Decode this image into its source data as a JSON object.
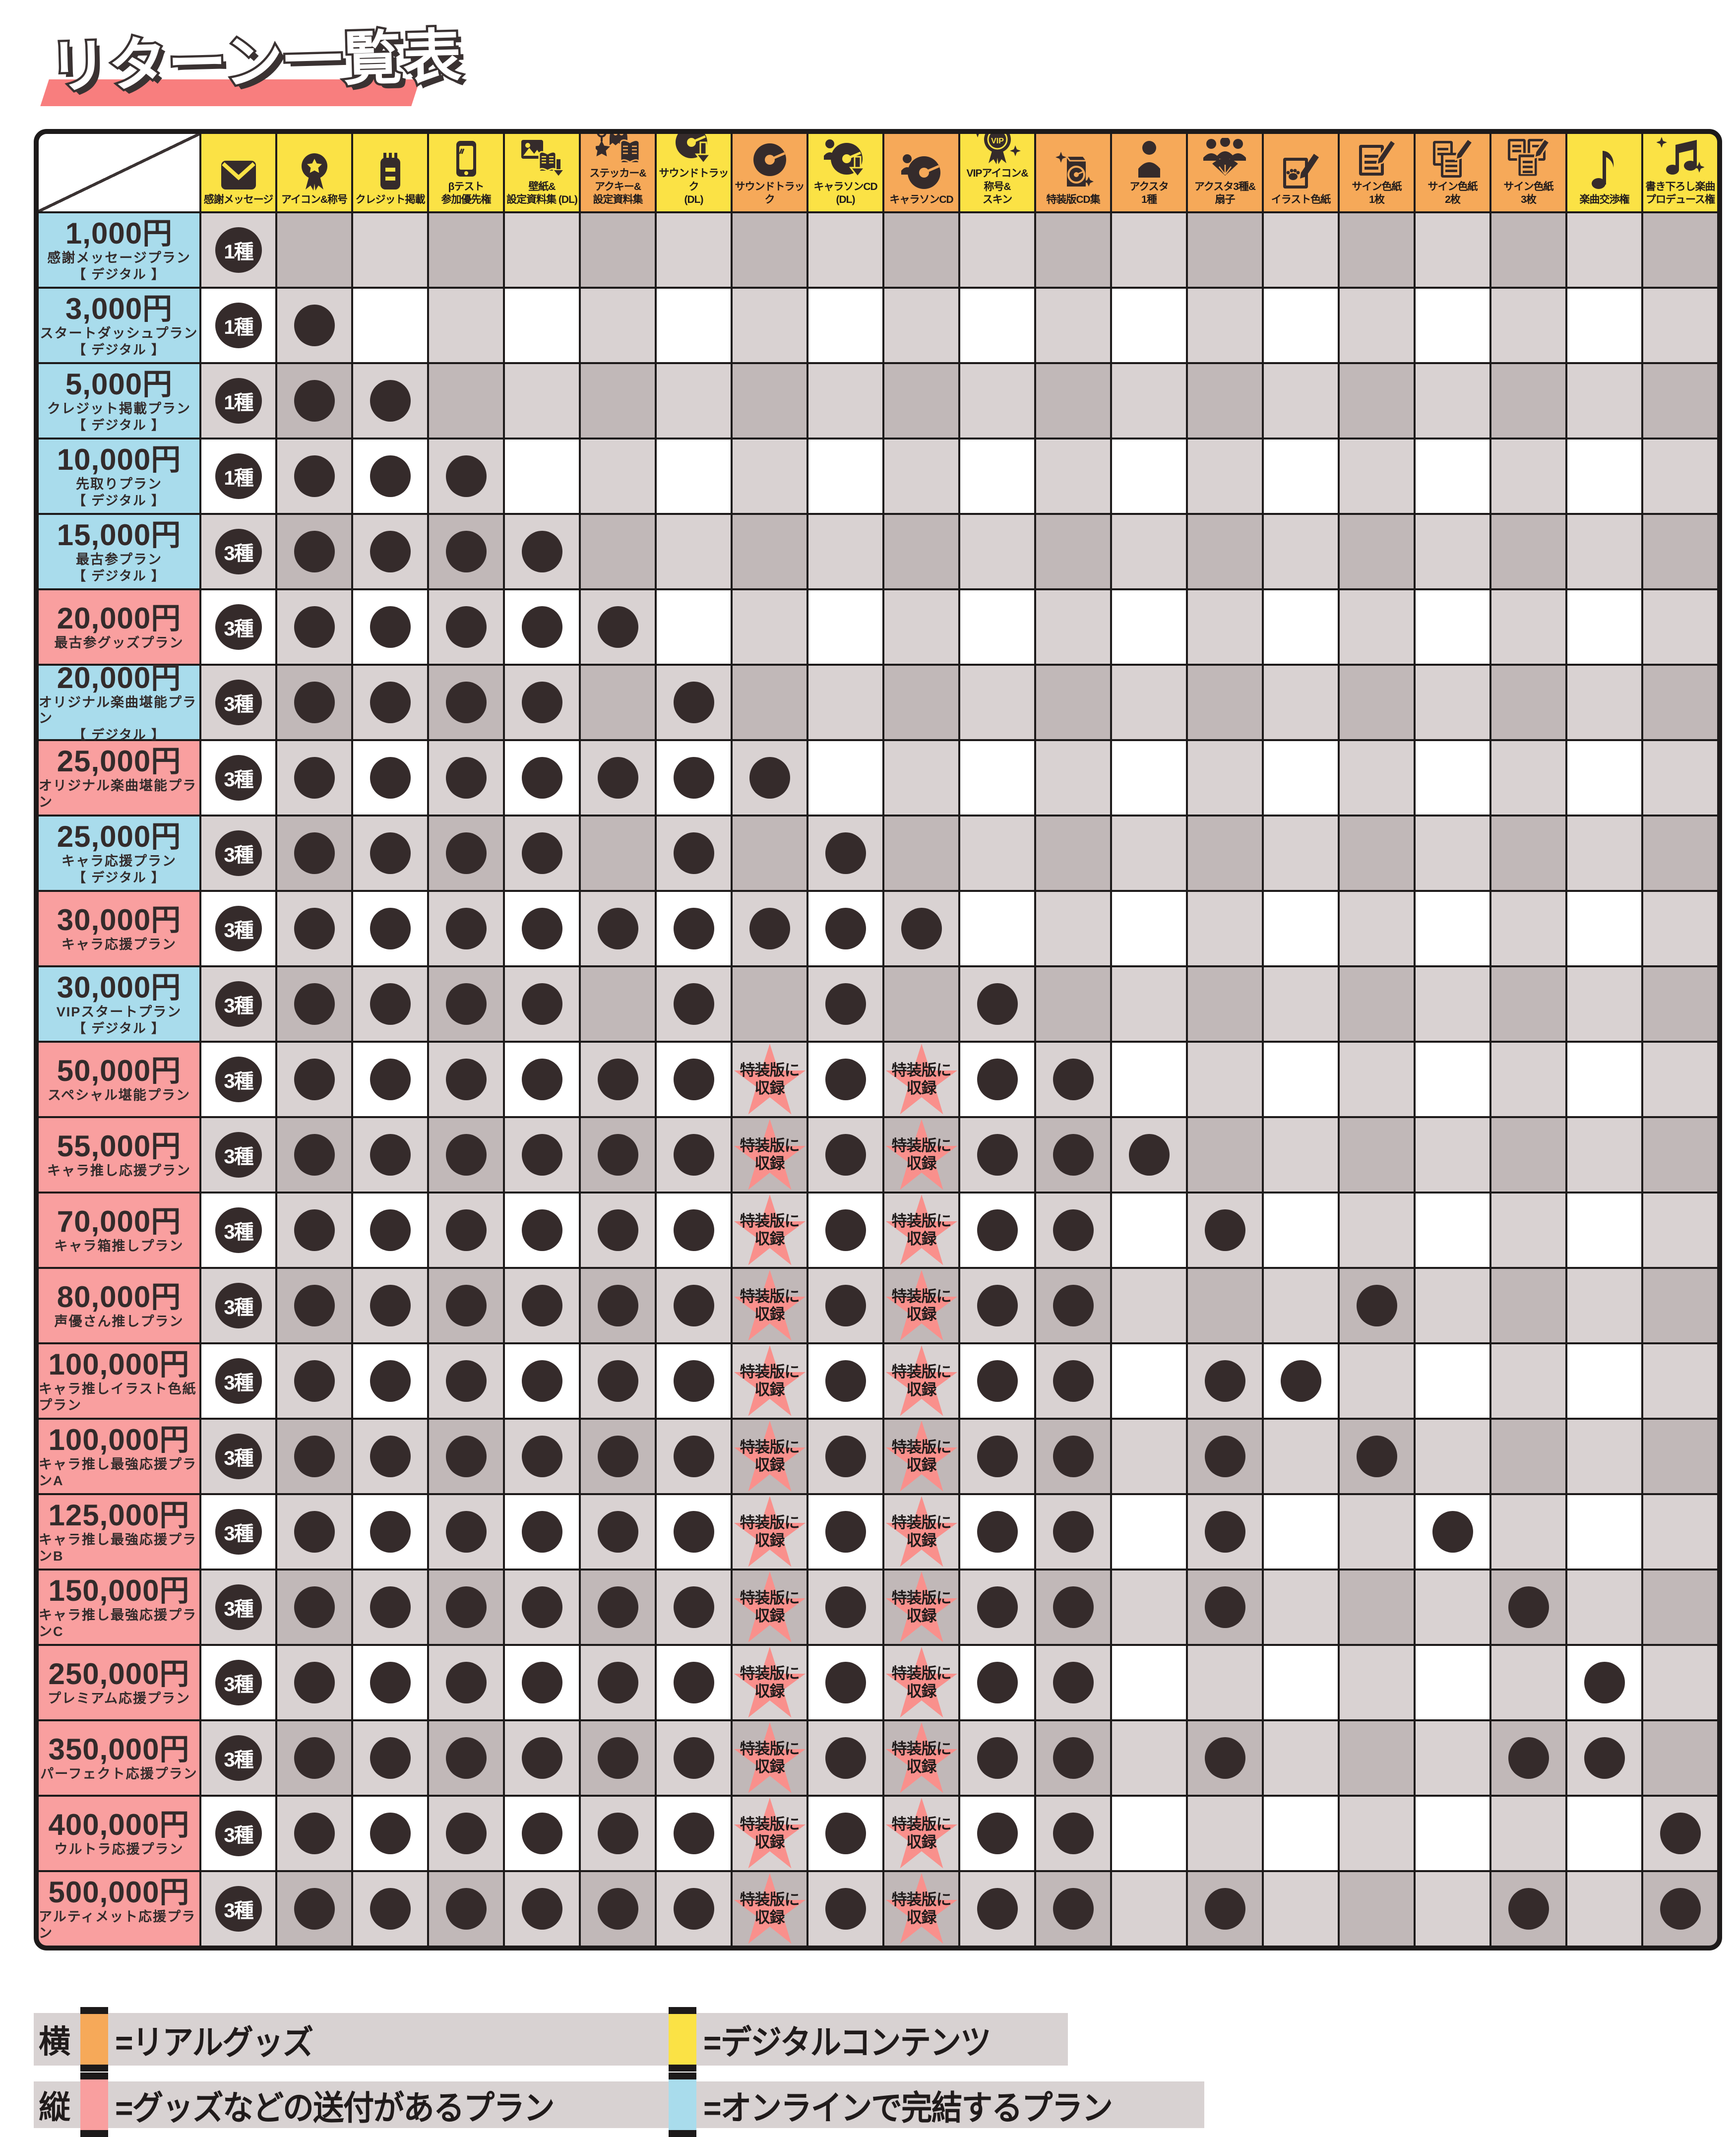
{
  "title": "リターン一覧表",
  "colors": {
    "digital_header": "#fbe245",
    "goods_header": "#f6a959",
    "online_plan_row": "#a9dcec",
    "goods_plan_row": "#f99f9f",
    "cell_white": "#ffffff",
    "cell_light_gray": "#d9d2d2",
    "cell_dark_gray": "#c1b8b8",
    "dot": "#352b2b",
    "star": "#f9908c",
    "title_underline": "#f87e7e",
    "legend_band": "#d8d2d2",
    "ink": "#1d1a1a"
  },
  "special_note": {
    "lines": [
      "特装版に",
      "収録"
    ]
  },
  "chart_data": {
    "type": "table",
    "title": "リターン一覧表",
    "columns": [
      {
        "lines": [
          "感謝メッセージ"
        ],
        "type": "digital",
        "icon": "envelope-icon"
      },
      {
        "lines": [
          "アイコン&称号"
        ],
        "type": "digital",
        "icon": "medal-icon"
      },
      {
        "lines": [
          "クレジット掲載"
        ],
        "type": "digital",
        "icon": "credits-icon"
      },
      {
        "lines": [
          "βテスト",
          "参加優先権"
        ],
        "type": "digital",
        "icon": "smartphone-icon"
      },
      {
        "lines": [
          "壁紙&",
          "設定資料集 (DL)"
        ],
        "type": "digital",
        "icon": "wallpaper-download-icon"
      },
      {
        "lines": [
          "ステッカー&",
          "アクキー&",
          "設定資料集"
        ],
        "type": "goods",
        "icon": "sticker-keychain-book-icon"
      },
      {
        "lines": [
          "サウンドトラック",
          "(DL)"
        ],
        "type": "digital",
        "icon": "cd-download-icon"
      },
      {
        "lines": [
          "サウンドトラック"
        ],
        "type": "goods",
        "icon": "cd-icon"
      },
      {
        "lines": [
          "キャラソンCD",
          "(DL)"
        ],
        "type": "digital",
        "icon": "person-cd-download-icon"
      },
      {
        "lines": [
          "キャラソンCD"
        ],
        "type": "goods",
        "icon": "person-cd-icon"
      },
      {
        "lines": [
          "VIPアイコン&",
          "称号&",
          "スキン"
        ],
        "type": "digital",
        "icon": "vip-medal-icon"
      },
      {
        "lines": [
          "特装版CD集"
        ],
        "type": "goods",
        "icon": "cd-box-icon"
      },
      {
        "lines": [
          "アクスタ",
          "1種"
        ],
        "type": "goods",
        "icon": "acrylic-stand-icon"
      },
      {
        "lines": [
          "アクスタ3種&",
          "扇子"
        ],
        "type": "goods",
        "icon": "acrylic-stands-fan-icon"
      },
      {
        "lines": [
          "イラスト色紙"
        ],
        "type": "goods",
        "icon": "illust-shikishi-icon"
      },
      {
        "lines": [
          "サイン色紙",
          "1枚"
        ],
        "type": "goods",
        "icon": "sign-shikishi-1-icon"
      },
      {
        "lines": [
          "サイン色紙",
          "2枚"
        ],
        "type": "goods",
        "icon": "sign-shikishi-2-icon"
      },
      {
        "lines": [
          "サイン色紙",
          "3枚"
        ],
        "type": "goods",
        "icon": "sign-shikishi-3-icon"
      },
      {
        "lines": [
          "楽曲交渉権"
        ],
        "type": "digital",
        "icon": "music-note-icon"
      },
      {
        "lines": [
          "書き下ろし楽曲",
          "プロデュース権"
        ],
        "type": "digital",
        "icon": "music-produce-icon"
      }
    ],
    "rows": [
      {
        "price": "1,000円",
        "name": "感謝メッセージプラン",
        "sub": "【 デジタル 】",
        "type": "online",
        "badge": "1種",
        "dots": [],
        "special": []
      },
      {
        "price": "3,000円",
        "name": "スタートダッシュプラン",
        "sub": "【 デジタル 】",
        "type": "online",
        "badge": "1種",
        "dots": [
          2
        ],
        "special": []
      },
      {
        "price": "5,000円",
        "name": "クレジット掲載プラン",
        "sub": "【 デジタル 】",
        "type": "online",
        "badge": "1種",
        "dots": [
          2,
          3
        ],
        "special": []
      },
      {
        "price": "10,000円",
        "name": "先取りプラン",
        "sub": "【 デジタル 】",
        "type": "online",
        "badge": "1種",
        "dots": [
          2,
          3,
          4
        ],
        "special": []
      },
      {
        "price": "15,000円",
        "name": "最古参プラン",
        "sub": "【 デジタル 】",
        "type": "online",
        "badge": "3種",
        "dots": [
          2,
          3,
          4,
          5
        ],
        "special": []
      },
      {
        "price": "20,000円",
        "name": "最古参グッズプラン",
        "sub": "",
        "type": "goods",
        "badge": "3種",
        "dots": [
          2,
          3,
          4,
          5,
          6
        ],
        "special": []
      },
      {
        "price": "20,000円",
        "name": "オリジナル楽曲堪能プラン",
        "sub": "【 デジタル 】",
        "type": "online",
        "badge": "3種",
        "dots": [
          2,
          3,
          4,
          5,
          7
        ],
        "special": []
      },
      {
        "price": "25,000円",
        "name": "オリジナル楽曲堪能プラン",
        "sub": "",
        "type": "goods",
        "badge": "3種",
        "dots": [
          2,
          3,
          4,
          5,
          6,
          7,
          8
        ],
        "special": []
      },
      {
        "price": "25,000円",
        "name": "キャラ応援プラン",
        "sub": "【 デジタル 】",
        "type": "online",
        "badge": "3種",
        "dots": [
          2,
          3,
          4,
          5,
          7,
          9
        ],
        "special": []
      },
      {
        "price": "30,000円",
        "name": "キャラ応援プラン",
        "sub": "",
        "type": "goods",
        "badge": "3種",
        "dots": [
          2,
          3,
          4,
          5,
          6,
          7,
          8,
          9,
          10
        ],
        "special": []
      },
      {
        "price": "30,000円",
        "name": "VIPスタートプラン",
        "sub": "【 デジタル 】",
        "type": "online",
        "badge": "3種",
        "dots": [
          2,
          3,
          4,
          5,
          7,
          9,
          11
        ],
        "special": []
      },
      {
        "price": "50,000円",
        "name": "スペシャル堪能プラン",
        "sub": "",
        "type": "goods",
        "badge": "3種",
        "dots": [
          2,
          3,
          4,
          5,
          6,
          7,
          9,
          11,
          12
        ],
        "special": [
          8,
          10
        ]
      },
      {
        "price": "55,000円",
        "name": "キャラ推し応援プラン",
        "sub": "",
        "type": "goods",
        "badge": "3種",
        "dots": [
          2,
          3,
          4,
          5,
          6,
          7,
          9,
          11,
          12,
          13
        ],
        "special": [
          8,
          10
        ]
      },
      {
        "price": "70,000円",
        "name": "キャラ箱推しプラン",
        "sub": "",
        "type": "goods",
        "badge": "3種",
        "dots": [
          2,
          3,
          4,
          5,
          6,
          7,
          9,
          11,
          12,
          14
        ],
        "special": [
          8,
          10
        ]
      },
      {
        "price": "80,000円",
        "name": "声優さん推しプラン",
        "sub": "",
        "type": "goods",
        "badge": "3種",
        "dots": [
          2,
          3,
          4,
          5,
          6,
          7,
          9,
          11,
          12,
          16
        ],
        "special": [
          8,
          10
        ]
      },
      {
        "price": "100,000円",
        "name": "キャラ推しイラスト色紙プラン",
        "sub": "",
        "type": "goods",
        "badge": "3種",
        "dots": [
          2,
          3,
          4,
          5,
          6,
          7,
          9,
          11,
          12,
          14,
          15
        ],
        "special": [
          8,
          10
        ]
      },
      {
        "price": "100,000円",
        "name": "キャラ推し最強応援プランA",
        "sub": "",
        "type": "goods",
        "badge": "3種",
        "dots": [
          2,
          3,
          4,
          5,
          6,
          7,
          9,
          11,
          12,
          14,
          16
        ],
        "special": [
          8,
          10
        ]
      },
      {
        "price": "125,000円",
        "name": "キャラ推し最強応援プランB",
        "sub": "",
        "type": "goods",
        "badge": "3種",
        "dots": [
          2,
          3,
          4,
          5,
          6,
          7,
          9,
          11,
          12,
          14,
          17
        ],
        "special": [
          8,
          10
        ]
      },
      {
        "price": "150,000円",
        "name": "キャラ推し最強応援プランC",
        "sub": "",
        "type": "goods",
        "badge": "3種",
        "dots": [
          2,
          3,
          4,
          5,
          6,
          7,
          9,
          11,
          12,
          14,
          18
        ],
        "special": [
          8,
          10
        ]
      },
      {
        "price": "250,000円",
        "name": "プレミアム応援プラン",
        "sub": "",
        "type": "goods",
        "badge": "3種",
        "dots": [
          2,
          3,
          4,
          5,
          6,
          7,
          9,
          11,
          12,
          19
        ],
        "special": [
          8,
          10
        ]
      },
      {
        "price": "350,000円",
        "name": "パーフェクト応援プラン",
        "sub": "",
        "type": "goods",
        "badge": "3種",
        "dots": [
          2,
          3,
          4,
          5,
          6,
          7,
          9,
          11,
          12,
          14,
          18,
          19
        ],
        "special": [
          8,
          10
        ]
      },
      {
        "price": "400,000円",
        "name": "ウルトラ応援プラン",
        "sub": "",
        "type": "goods",
        "badge": "3種",
        "dots": [
          2,
          3,
          4,
          5,
          6,
          7,
          9,
          11,
          12,
          20
        ],
        "special": [
          8,
          10
        ]
      },
      {
        "price": "500,000円",
        "name": "アルティメット応援プラン",
        "sub": "",
        "type": "goods",
        "badge": "3種",
        "dots": [
          2,
          3,
          4,
          5,
          6,
          7,
          9,
          11,
          12,
          14,
          18,
          20
        ],
        "special": [
          8,
          10
        ]
      }
    ]
  },
  "legend": {
    "rows": [
      {
        "axis": "横",
        "items": [
          {
            "color": "#f6a959",
            "label": "=リアルグッズ"
          },
          {
            "color": "#fbe245",
            "label": "=デジタルコンテンツ"
          }
        ]
      },
      {
        "axis": "縦",
        "items": [
          {
            "color": "#f99f9f",
            "label": "=グッズなどの送付があるプラン"
          },
          {
            "color": "#a9dcec",
            "label": "=オンラインで完結するプラン"
          }
        ]
      }
    ]
  }
}
